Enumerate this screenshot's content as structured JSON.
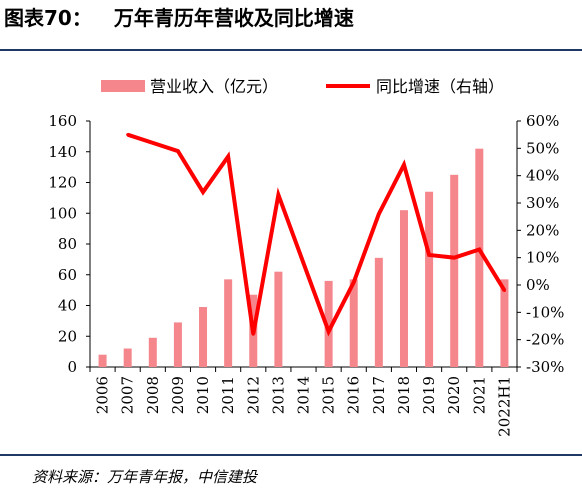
{
  "title": {
    "label": "图表70：",
    "text": "万年青历年营收及同比增速"
  },
  "source": "资料来源：万年青年报，中信建投",
  "colors": {
    "bar": "#f4868c",
    "line": "#ff0000",
    "rule": "#1f3864",
    "axis": "#000000"
  },
  "chart_data": {
    "type": "bar+line",
    "categories": [
      "2006",
      "2007",
      "2008",
      "2009",
      "2010",
      "2011",
      "2012",
      "2013",
      "2014",
      "2015",
      "2016",
      "2017",
      "2018",
      "2019",
      "2020",
      "2021",
      "2022H1"
    ],
    "series": [
      {
        "name": "营业收入（亿元）",
        "type": "bar",
        "axis": "left",
        "values": [
          8,
          12,
          19,
          29,
          39,
          57,
          47,
          62,
          null,
          56,
          57,
          71,
          102,
          114,
          125,
          142,
          57
        ]
      },
      {
        "name": "同比增速（右轴）",
        "type": "line",
        "axis": "right",
        "values": [
          null,
          55,
          52,
          49,
          34,
          47,
          -18,
          33,
          8,
          -17,
          1,
          26,
          44,
          11,
          10,
          13,
          -2
        ]
      }
    ],
    "y_left": {
      "lim": [
        0,
        160
      ],
      "ticks": [
        "0",
        "20",
        "40",
        "60",
        "80",
        "100",
        "120",
        "140",
        "160"
      ]
    },
    "y_right": {
      "lim": [
        -30,
        60
      ],
      "ticks": [
        "-30%",
        "-20%",
        "-10%",
        "0%",
        "10%",
        "20%",
        "30%",
        "40%",
        "50%",
        "60%"
      ]
    },
    "legend_position": "top"
  }
}
